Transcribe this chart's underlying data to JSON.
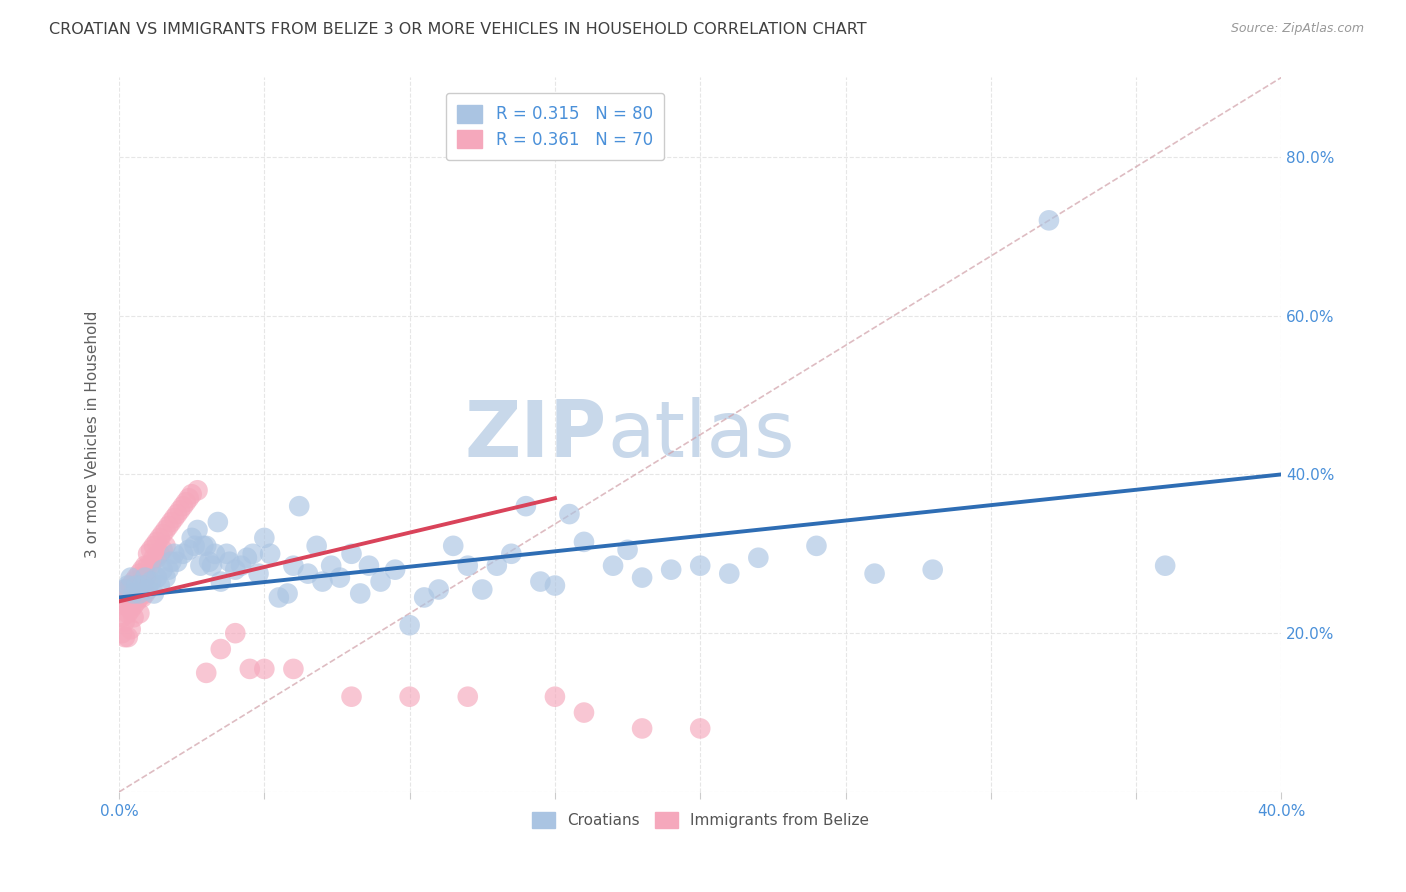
{
  "title": "CROATIAN VS IMMIGRANTS FROM BELIZE 3 OR MORE VEHICLES IN HOUSEHOLD CORRELATION CHART",
  "source": "Source: ZipAtlas.com",
  "ylabel": "3 or more Vehicles in Household",
  "xlim": [
    0.0,
    0.4
  ],
  "ylim": [
    0.0,
    0.9
  ],
  "legend1_label": "R = 0.315   N = 80",
  "legend2_label": "R = 0.361   N = 70",
  "legend1_color": "#aac4e2",
  "legend2_color": "#f5a8bc",
  "line1_color": "#2e6db4",
  "line2_color": "#d9435a",
  "diagonal_color": "#d0a0a8",
  "grid_color": "#e0e0e0",
  "watermark_zip": "ZIP",
  "watermark_atlas": "atlas",
  "watermark_color": "#c8d8ea",
  "title_color": "#404040",
  "axis_label_color": "#606060",
  "tick_color": "#4a90d9",
  "scatter1_color": "#aac4e2",
  "scatter2_color": "#f5a8bc",
  "line1_x_start": 0.0,
  "line1_y_start": 0.245,
  "line1_x_end": 0.4,
  "line1_y_end": 0.4,
  "line2_x_start": 0.0,
  "line2_y_start": 0.24,
  "line2_x_end": 0.15,
  "line2_y_end": 0.37,
  "scatter1_x": [
    0.002,
    0.003,
    0.004,
    0.005,
    0.006,
    0.007,
    0.008,
    0.009,
    0.01,
    0.011,
    0.012,
    0.013,
    0.014,
    0.015,
    0.016,
    0.017,
    0.018,
    0.019,
    0.02,
    0.022,
    0.024,
    0.025,
    0.026,
    0.027,
    0.028,
    0.029,
    0.03,
    0.031,
    0.032,
    0.033,
    0.034,
    0.035,
    0.037,
    0.038,
    0.04,
    0.042,
    0.044,
    0.046,
    0.048,
    0.05,
    0.052,
    0.055,
    0.058,
    0.06,
    0.062,
    0.065,
    0.068,
    0.07,
    0.073,
    0.076,
    0.08,
    0.083,
    0.086,
    0.09,
    0.095,
    0.1,
    0.105,
    0.11,
    0.115,
    0.12,
    0.125,
    0.13,
    0.135,
    0.14,
    0.145,
    0.15,
    0.155,
    0.16,
    0.17,
    0.175,
    0.18,
    0.19,
    0.2,
    0.21,
    0.22,
    0.24,
    0.26,
    0.28,
    0.32,
    0.36
  ],
  "scatter1_y": [
    0.255,
    0.26,
    0.27,
    0.25,
    0.26,
    0.25,
    0.26,
    0.27,
    0.255,
    0.265,
    0.25,
    0.27,
    0.26,
    0.28,
    0.27,
    0.28,
    0.29,
    0.3,
    0.29,
    0.3,
    0.305,
    0.32,
    0.31,
    0.33,
    0.285,
    0.31,
    0.31,
    0.29,
    0.285,
    0.3,
    0.34,
    0.265,
    0.3,
    0.29,
    0.28,
    0.285,
    0.295,
    0.3,
    0.275,
    0.32,
    0.3,
    0.245,
    0.25,
    0.285,
    0.36,
    0.275,
    0.31,
    0.265,
    0.285,
    0.27,
    0.3,
    0.25,
    0.285,
    0.265,
    0.28,
    0.21,
    0.245,
    0.255,
    0.31,
    0.285,
    0.255,
    0.285,
    0.3,
    0.36,
    0.265,
    0.26,
    0.35,
    0.315,
    0.285,
    0.305,
    0.27,
    0.28,
    0.285,
    0.275,
    0.295,
    0.31,
    0.275,
    0.28,
    0.72,
    0.285
  ],
  "scatter2_x": [
    0.001,
    0.001,
    0.001,
    0.002,
    0.002,
    0.002,
    0.002,
    0.003,
    0.003,
    0.003,
    0.003,
    0.004,
    0.004,
    0.004,
    0.004,
    0.005,
    0.005,
    0.005,
    0.005,
    0.006,
    0.006,
    0.006,
    0.007,
    0.007,
    0.007,
    0.007,
    0.008,
    0.008,
    0.008,
    0.009,
    0.009,
    0.009,
    0.01,
    0.01,
    0.01,
    0.011,
    0.011,
    0.012,
    0.012,
    0.013,
    0.013,
    0.014,
    0.014,
    0.015,
    0.015,
    0.016,
    0.016,
    0.017,
    0.018,
    0.019,
    0.02,
    0.021,
    0.022,
    0.023,
    0.024,
    0.025,
    0.027,
    0.03,
    0.035,
    0.04,
    0.045,
    0.05,
    0.06,
    0.08,
    0.1,
    0.12,
    0.15,
    0.16,
    0.18,
    0.2
  ],
  "scatter2_y": [
    0.24,
    0.22,
    0.2,
    0.255,
    0.235,
    0.215,
    0.195,
    0.255,
    0.24,
    0.225,
    0.195,
    0.26,
    0.245,
    0.23,
    0.205,
    0.265,
    0.25,
    0.235,
    0.22,
    0.27,
    0.255,
    0.24,
    0.275,
    0.26,
    0.245,
    0.225,
    0.28,
    0.265,
    0.245,
    0.285,
    0.27,
    0.25,
    0.3,
    0.285,
    0.265,
    0.305,
    0.285,
    0.31,
    0.295,
    0.315,
    0.295,
    0.32,
    0.3,
    0.325,
    0.305,
    0.33,
    0.31,
    0.335,
    0.34,
    0.345,
    0.35,
    0.355,
    0.36,
    0.365,
    0.37,
    0.375,
    0.38,
    0.15,
    0.18,
    0.2,
    0.155,
    0.155,
    0.155,
    0.12,
    0.12,
    0.12,
    0.12,
    0.1,
    0.08,
    0.08
  ]
}
